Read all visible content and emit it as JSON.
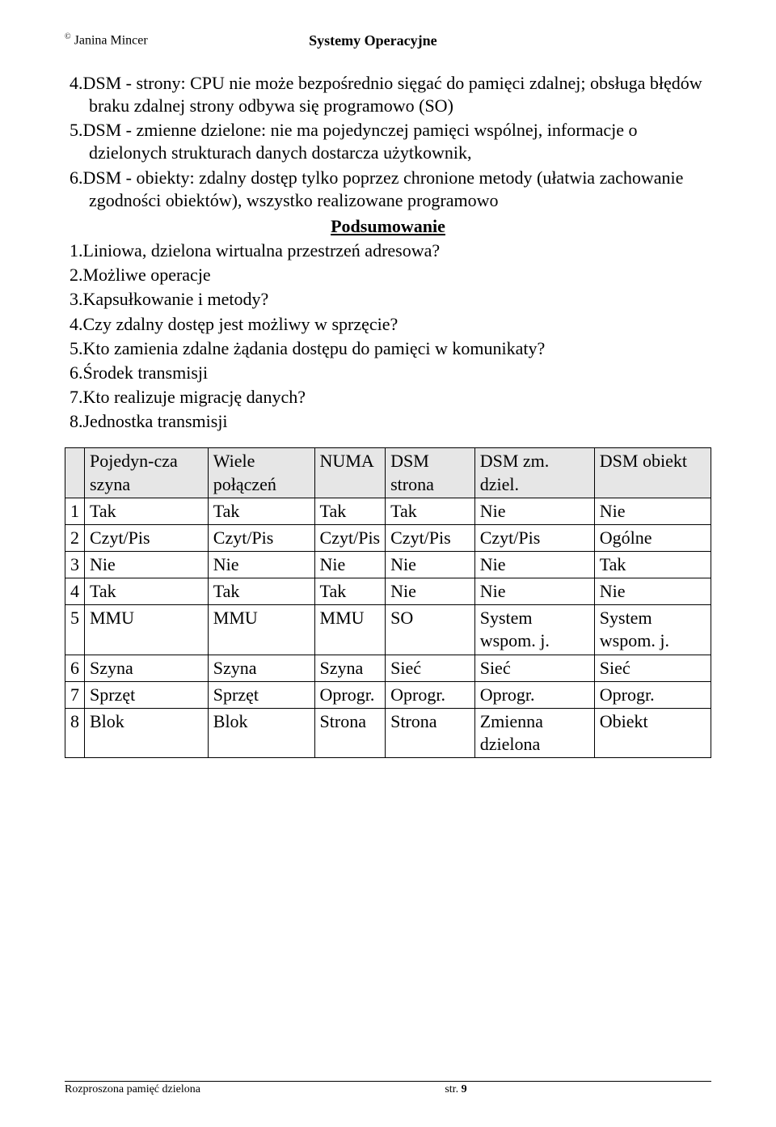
{
  "header": {
    "left_prefix": "©",
    "left_name": "Janina Mincer",
    "center": "Systemy Operacyjne"
  },
  "sectionA": {
    "items": [
      "4.DSM - strony: CPU nie może bezpośrednio sięgać do pamięci zdalnej; obsługa błędów braku zdalnej strony odbywa się programowo (SO)",
      "5.DSM - zmienne dzielone: nie ma pojedynczej pamięci wspólnej, informacje o dzielonych strukturach danych dostarcza użytkownik,",
      "6.DSM - obiekty: zdalny dostęp tylko poprzez chronione metody (ułatwia zachowanie zgodności obiektów), wszystko realizowane programowo"
    ]
  },
  "subheading": "Podsumowanie",
  "sectionB": {
    "items": [
      "1.Liniowa, dzielona wirtualna przestrzeń adresowa?",
      "2.Możliwe operacje",
      "3.Kapsułkowanie i metody?",
      "4.Czy zdalny dostęp jest możliwy w sprzęcie?",
      "5.Kto zamienia zdalne żądania dostępu do pamięci w komunikaty?",
      "6.Środek transmisji",
      "7.Kto realizuje migrację danych?",
      "8.Jednostka transmisji"
    ]
  },
  "table": {
    "head": [
      "",
      "Pojedyn-cza szyna",
      "Wiele połączeń",
      "NUMA",
      "DSM strona",
      "DSM zm. dziel.",
      "DSM obiekt"
    ],
    "rows": [
      [
        "1",
        "Tak",
        "Tak",
        "Tak",
        "Tak",
        "Nie",
        "Nie"
      ],
      [
        "2",
        "Czyt/Pis",
        "Czyt/Pis",
        "Czyt/Pis",
        "Czyt/Pis",
        "Czyt/Pis",
        "Ogólne"
      ],
      [
        "3",
        "Nie",
        "Nie",
        "Nie",
        "Nie",
        "Nie",
        "Tak"
      ],
      [
        "4",
        "Tak",
        "Tak",
        "Tak",
        "Nie",
        "Nie",
        "Nie"
      ],
      [
        "5",
        "MMU",
        "MMU",
        "MMU",
        "SO",
        "System wspom. j.",
        "System wspom. j."
      ],
      [
        "6",
        "Szyna",
        "Szyna",
        "Szyna",
        "Sieć",
        "Sieć",
        "Sieć"
      ],
      [
        "7",
        "Sprzęt",
        "Sprzęt",
        "Oprogr.",
        "Oprogr.",
        "Oprogr.",
        "Oprogr."
      ],
      [
        "8",
        "Blok",
        "Blok",
        "Strona",
        "Strona",
        "Zmienna dzielona",
        "Obiekt"
      ]
    ]
  },
  "footer": {
    "left": "Rozproszona pamięć dzielona",
    "page_label": "str.",
    "page_num": "9"
  }
}
